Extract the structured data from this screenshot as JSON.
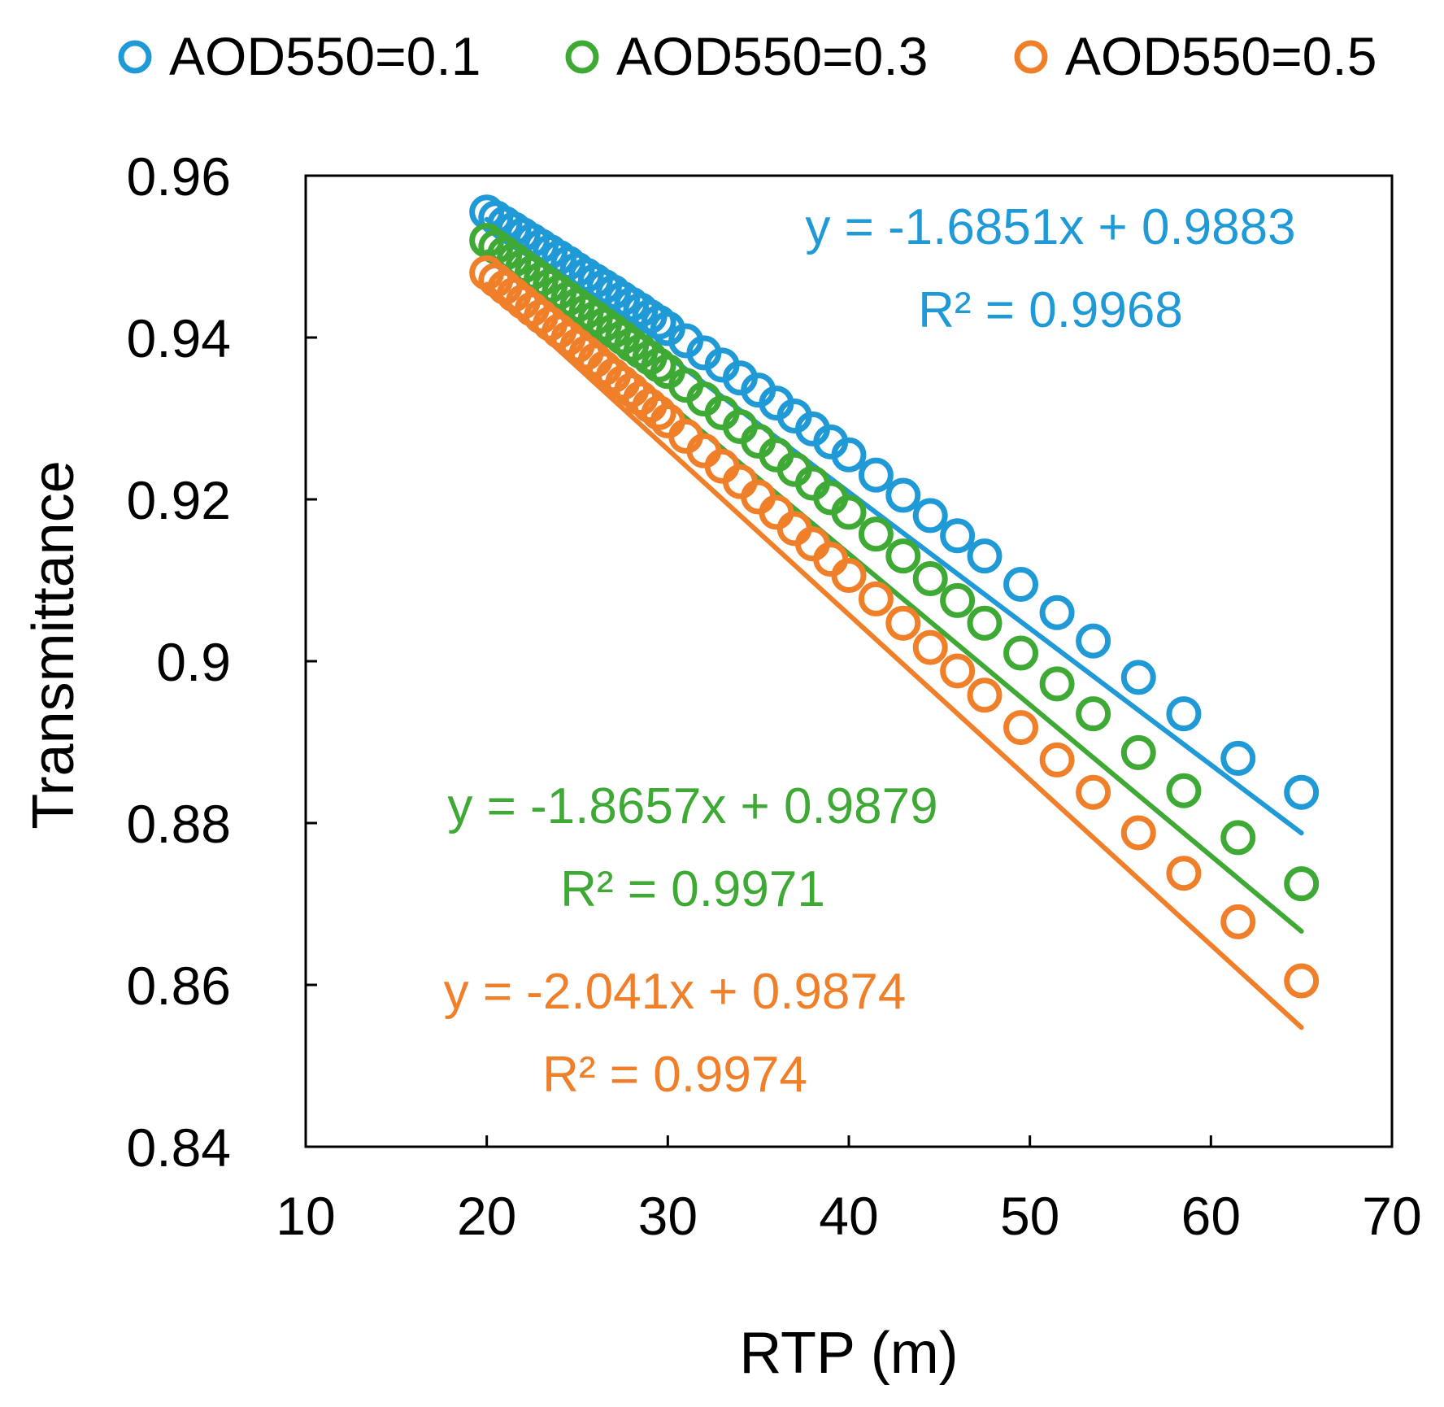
{
  "chart_data": {
    "type": "scatter",
    "xlabel": "RTP (m)",
    "ylabel": "Transmittance",
    "xlim": [
      10,
      70
    ],
    "ylim": [
      0.84,
      0.96
    ],
    "xticks": [
      "10",
      "20",
      "30",
      "40",
      "50",
      "60",
      "70"
    ],
    "yticks": [
      "0.84",
      "0.86",
      "0.88",
      "0.9",
      "0.92",
      "0.94",
      "0.96"
    ],
    "grid": false,
    "legend_position": "top",
    "x_per_unit": 1000,
    "series": [
      {
        "name": "AOD550=0.1",
        "color": "#1f9ad6",
        "x": [
          20,
          20.5,
          21,
          21.5,
          22,
          22.5,
          23,
          23.5,
          24,
          24.5,
          25,
          25.5,
          26,
          26.5,
          27,
          27.5,
          28,
          28.5,
          29,
          29.5,
          30,
          31,
          32,
          33,
          34,
          35,
          36,
          37,
          38,
          39,
          40,
          41.5,
          43,
          44.5,
          46,
          47.5,
          49.5,
          51.5,
          53.5,
          56,
          58.5,
          61.5,
          65
        ],
        "y": [
          0.9555,
          0.9548,
          0.9541,
          0.9534,
          0.9527,
          0.952,
          0.9513,
          0.9506,
          0.9499,
          0.9492,
          0.9484,
          0.9477,
          0.947,
          0.9463,
          0.9456,
          0.9448,
          0.9441,
          0.9434,
          0.9426,
          0.9419,
          0.9411,
          0.9396,
          0.9381,
          0.9366,
          0.935,
          0.9335,
          0.9319,
          0.9303,
          0.9287,
          0.9271,
          0.9255,
          0.923,
          0.9205,
          0.918,
          0.9155,
          0.913,
          0.9095,
          0.906,
          0.9025,
          0.898,
          0.8935,
          0.888,
          0.8838
        ],
        "trendline": {
          "label": "y = -1.6851x + 0.9883",
          "r2_label": "R² = 0.9968",
          "slope": -1.6851,
          "intercept": 0.9883
        }
      },
      {
        "name": "AOD550=0.3",
        "color": "#3ea935",
        "x": [
          20,
          20.5,
          21,
          21.5,
          22,
          22.5,
          23,
          23.5,
          24,
          24.5,
          25,
          25.5,
          26,
          26.5,
          27,
          27.5,
          28,
          28.5,
          29,
          29.5,
          30,
          31,
          32,
          33,
          34,
          35,
          36,
          37,
          38,
          39,
          40,
          41.5,
          43,
          44.5,
          46,
          47.5,
          49.5,
          51.5,
          53.5,
          56,
          58.5,
          61.5,
          65
        ],
        "y": [
          0.952,
          0.9512,
          0.9504,
          0.9496,
          0.9488,
          0.948,
          0.9472,
          0.9464,
          0.9456,
          0.9448,
          0.944,
          0.9432,
          0.9424,
          0.9416,
          0.9408,
          0.94,
          0.9391,
          0.9383,
          0.9375,
          0.9366,
          0.9358,
          0.9341,
          0.9324,
          0.9307,
          0.929,
          0.9272,
          0.9255,
          0.9237,
          0.922,
          0.9202,
          0.9184,
          0.9157,
          0.913,
          0.9102,
          0.9075,
          0.9047,
          0.901,
          0.8972,
          0.8935,
          0.8887,
          0.884,
          0.8782,
          0.8725
        ],
        "trendline": {
          "label": "y = -1.8657x + 0.9879",
          "r2_label": "R² = 0.9971",
          "slope": -1.8657,
          "intercept": 0.9879
        }
      },
      {
        "name": "AOD550=0.5",
        "color": "#f07f2a",
        "x": [
          20,
          20.5,
          21,
          21.5,
          22,
          22.5,
          23,
          23.5,
          24,
          24.5,
          25,
          25.5,
          26,
          26.5,
          27,
          27.5,
          28,
          28.5,
          29,
          29.5,
          30,
          31,
          32,
          33,
          34,
          35,
          36,
          37,
          38,
          39,
          40,
          41.5,
          43,
          44.5,
          46,
          47.5,
          49.5,
          51.5,
          53.5,
          56,
          58.5,
          61.5,
          65
        ],
        "y": [
          0.948,
          0.9471,
          0.9462,
          0.9453,
          0.9444,
          0.9435,
          0.9426,
          0.9417,
          0.9408,
          0.9399,
          0.939,
          0.9381,
          0.9372,
          0.9362,
          0.9353,
          0.9344,
          0.9335,
          0.9325,
          0.9316,
          0.9307,
          0.9297,
          0.9278,
          0.926,
          0.9241,
          0.9222,
          0.9203,
          0.9184,
          0.9164,
          0.9145,
          0.9126,
          0.9106,
          0.9077,
          0.9047,
          0.9017,
          0.8988,
          0.8958,
          0.8918,
          0.8878,
          0.8838,
          0.8788,
          0.8738,
          0.8678,
          0.8605
        ],
        "trendline": {
          "label": "y = -2.041x + 0.9874",
          "r2_label": "R² = 0.9974",
          "slope": -2.041,
          "intercept": 0.9874
        }
      }
    ]
  }
}
